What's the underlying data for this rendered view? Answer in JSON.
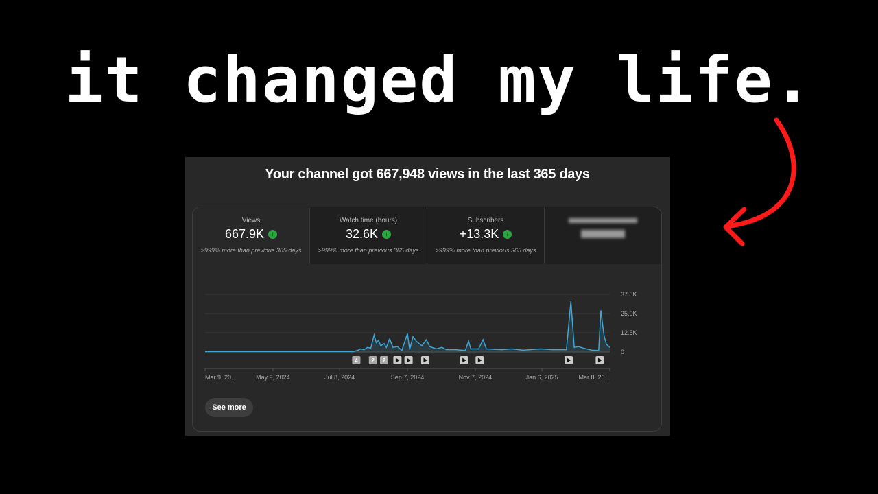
{
  "headline": "it changed my life.",
  "panel": {
    "title": "Your channel got 667,948 views in the last 365 days",
    "metrics": [
      {
        "label": "Views",
        "value": "667.9K",
        "sub": ">999% more than previous 365 days",
        "trend": "up"
      },
      {
        "label": "Watch time (hours)",
        "value": "32.6K",
        "sub": ">999% more than previous 365 days",
        "trend": "up"
      },
      {
        "label": "Subscribers",
        "value": "+13.3K",
        "sub": ">999% more than previous 365 days",
        "trend": "up"
      }
    ],
    "see_more": "See more"
  },
  "colors": {
    "line": "#3ea6d6",
    "up": "#2ba640",
    "arrow": "#ff1a1a",
    "panel": "#282828"
  },
  "chart_data": {
    "type": "line",
    "y_ticks": [
      "37.5K",
      "25.0K",
      "12.5K",
      "0"
    ],
    "ylim": [
      0,
      37500
    ],
    "x_ticks": [
      "Mar 9, 20...",
      "May 9, 2024",
      "Jul 8, 2024",
      "Sep 7, 2024",
      "Nov 7, 2024",
      "Jan 6, 2025",
      "Mar 8, 20..."
    ],
    "x_tick_dates": [
      "2024-03-09",
      "2024-05-09",
      "2024-07-08",
      "2024-09-07",
      "2024-11-07",
      "2025-01-06",
      "2025-03-08"
    ],
    "xlim": [
      "2024-03-09",
      "2025-03-08"
    ],
    "grid": true,
    "points": [
      [
        "2024-03-09",
        300
      ],
      [
        "2024-07-20",
        300
      ],
      [
        "2024-07-24",
        1000
      ],
      [
        "2024-07-27",
        2000
      ],
      [
        "2024-07-30",
        1500
      ],
      [
        "2024-08-02",
        3000
      ],
      [
        "2024-08-05",
        2500
      ],
      [
        "2024-08-08",
        11000
      ],
      [
        "2024-08-10",
        6000
      ],
      [
        "2024-08-12",
        7500
      ],
      [
        "2024-08-14",
        4000
      ],
      [
        "2024-08-17",
        5500
      ],
      [
        "2024-08-19",
        3000
      ],
      [
        "2024-08-22",
        8500
      ],
      [
        "2024-08-25",
        3000
      ],
      [
        "2024-08-29",
        3500
      ],
      [
        "2024-09-02",
        1000
      ],
      [
        "2024-09-07",
        12000
      ],
      [
        "2024-09-09",
        1500
      ],
      [
        "2024-09-12",
        10000
      ],
      [
        "2024-09-15",
        7000
      ],
      [
        "2024-09-20",
        4000
      ],
      [
        "2024-09-24",
        8000
      ],
      [
        "2024-09-27",
        3500
      ],
      [
        "2024-10-03",
        2000
      ],
      [
        "2024-10-08",
        3000
      ],
      [
        "2024-10-12",
        1500
      ],
      [
        "2024-10-20",
        1500
      ],
      [
        "2024-10-29",
        1000
      ],
      [
        "2024-11-01",
        7000
      ],
      [
        "2024-11-03",
        2000
      ],
      [
        "2024-11-10",
        2000
      ],
      [
        "2024-11-14",
        8000
      ],
      [
        "2024-11-17",
        2000
      ],
      [
        "2024-12-01",
        1500
      ],
      [
        "2024-12-10",
        2000
      ],
      [
        "2024-12-20",
        1200
      ],
      [
        "2025-01-05",
        2000
      ],
      [
        "2025-01-15",
        1500
      ],
      [
        "2025-01-28",
        1500
      ],
      [
        "2025-02-01",
        33000
      ],
      [
        "2025-02-04",
        3000
      ],
      [
        "2025-02-08",
        3500
      ],
      [
        "2025-02-12",
        2500
      ],
      [
        "2025-02-20",
        1200
      ],
      [
        "2025-02-26",
        1000
      ],
      [
        "2025-02-28",
        27000
      ],
      [
        "2025-03-02",
        15000
      ],
      [
        "2025-03-03",
        10000
      ],
      [
        "2025-03-05",
        5000
      ],
      [
        "2025-03-08",
        3000
      ]
    ],
    "video_markers": [
      {
        "date": "2024-07-23",
        "label": "4"
      },
      {
        "date": "2024-08-07",
        "label": "2"
      },
      {
        "date": "2024-08-17",
        "label": "2"
      },
      {
        "date": "2024-08-29",
        "label": ""
      },
      {
        "date": "2024-09-08",
        "label": ""
      },
      {
        "date": "2024-09-23",
        "label": ""
      },
      {
        "date": "2024-10-28",
        "label": ""
      },
      {
        "date": "2024-11-11",
        "label": ""
      },
      {
        "date": "2025-01-30",
        "label": ""
      },
      {
        "date": "2025-02-27",
        "label": ""
      }
    ]
  }
}
